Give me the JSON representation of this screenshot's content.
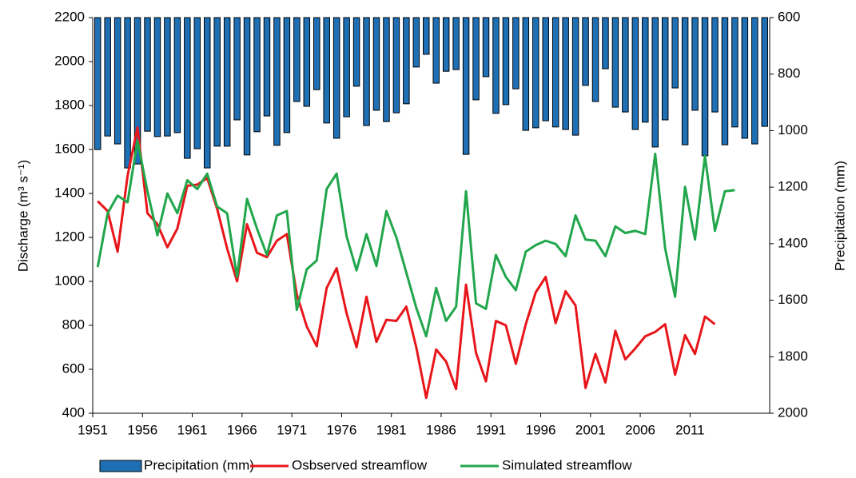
{
  "chart_data": {
    "type": "bar-line",
    "y_label": "Discharge (m³ s⁻¹)",
    "y2_label": "Precipitation (mm)",
    "categories": [
      "1951",
      null,
      null,
      null,
      null,
      "1956",
      null,
      null,
      null,
      null,
      "1961",
      null,
      null,
      null,
      null,
      "1966",
      null,
      null,
      null,
      null,
      "1971",
      null,
      null,
      null,
      null,
      "1976",
      null,
      null,
      null,
      null,
      "1981",
      null,
      null,
      null,
      null,
      "1986",
      null,
      null,
      null,
      null,
      "1991",
      null,
      null,
      null,
      null,
      "1996",
      null,
      null,
      null,
      null,
      "2001",
      null,
      null,
      null,
      null,
      "2006",
      null,
      null,
      null,
      null,
      "2011",
      null,
      null,
      null,
      null,
      null,
      null,
      null
    ],
    "ylim": [
      400,
      2200
    ],
    "yticks": [
      400,
      600,
      800,
      1000,
      1200,
      1400,
      1600,
      1800,
      2000,
      2200
    ],
    "y2lim": [
      2000,
      600
    ],
    "y2ticks": [
      600,
      800,
      1000,
      1200,
      1400,
      1600,
      1800,
      2000
    ],
    "y2_inverted": true,
    "series": [
      {
        "name": "Precipitation (mm)",
        "type": "bar",
        "axis": "y2",
        "color": "#1f6fb5",
        "values": [
          1067,
          1019,
          1047,
          1132,
          1118,
          1002,
          1021,
          1019,
          1007,
          1098,
          1064,
          1132,
          1055,
          1055,
          962,
          1086,
          1004,
          948,
          1052,
          1007,
          897,
          914,
          855,
          973,
          1027,
          951,
          843,
          982,
          928,
          968,
          937,
          905,
          775,
          730,
          832,
          790,
          784,
          1084,
          891,
          809,
          939,
          908,
          852,
          999,
          990,
          965,
          987,
          996,
          1016,
          840,
          897,
          781,
          917,
          934,
          996,
          970,
          1058,
          962,
          849,
          1050,
          928,
          1089,
          934,
          1050,
          987,
          1027,
          1047,
          985
        ]
      },
      {
        "name": "Osbserved streamflow",
        "type": "line",
        "color": "#e8161b",
        "values": [
          1365,
          1320,
          1135,
          1480,
          1700,
          1310,
          1260,
          1155,
          1240,
          1435,
          1440,
          1470,
          1330,
          1150,
          1000,
          1260,
          1130,
          1110,
          1185,
          1215,
          940,
          795,
          705,
          970,
          1060,
          855,
          700,
          930,
          725,
          825,
          820,
          885,
          700,
          470,
          690,
          635,
          510,
          985,
          675,
          545,
          820,
          800,
          625,
          805,
          950,
          1020,
          810,
          955,
          890,
          515,
          670,
          540,
          775,
          645,
          695,
          750,
          770,
          805,
          575,
          755,
          670,
          840,
          805,
          null,
          null,
          null,
          null,
          null
        ]
      },
      {
        "name": "Simulated streamflow",
        "type": "line",
        "color": "#21a64b",
        "values": [
          1065,
          1310,
          1390,
          1360,
          1640,
          1410,
          1210,
          1400,
          1310,
          1460,
          1420,
          1490,
          1340,
          1310,
          1020,
          1375,
          1240,
          1120,
          1300,
          1320,
          870,
          1055,
          1095,
          1420,
          1490,
          1205,
          1050,
          1215,
          1070,
          1320,
          1200,
          1040,
          880,
          750,
          970,
          820,
          885,
          1410,
          900,
          875,
          1120,
          1020,
          960,
          1135,
          1165,
          1185,
          1170,
          1115,
          1300,
          1190,
          1185,
          1115,
          1250,
          1220,
          1230,
          1215,
          1580,
          1150,
          930,
          1430,
          1190,
          1570,
          1230,
          1410,
          1415,
          null,
          null,
          null
        ]
      }
    ]
  }
}
